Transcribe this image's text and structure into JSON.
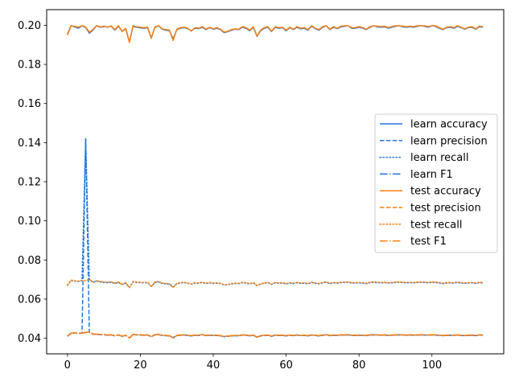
{
  "chart_data": {
    "type": "line",
    "title": "",
    "xlabel": "",
    "ylabel": "",
    "xlim": [
      -5.7,
      119.7
    ],
    "ylim": [
      0.032,
      0.208
    ],
    "xticks": [
      0,
      20,
      40,
      60,
      80,
      100
    ],
    "yticks": [
      0.04,
      0.06,
      0.08,
      0.1,
      0.12,
      0.14,
      0.16,
      0.18,
      0.2
    ],
    "ytick_labels": [
      "0.04",
      "0.06",
      "0.08",
      "0.10",
      "0.12",
      "0.14",
      "0.16",
      "0.18",
      "0.20"
    ],
    "grid": false,
    "legend_position": "center-right",
    "x_range": [
      0,
      114
    ],
    "series": [
      {
        "name": "learn accuracy",
        "color": "#1f77e0",
        "dash": "solid",
        "values": [
          0.1955,
          0.1998,
          0.1992,
          0.1985,
          0.1997,
          0.199,
          0.196,
          0.1975,
          0.1998,
          0.199,
          0.1993,
          0.1991,
          0.1995,
          0.1975,
          0.1995,
          0.197,
          0.1982,
          0.1915,
          0.1995,
          0.199,
          0.1987,
          0.1985,
          0.1988,
          0.1935,
          0.199,
          0.1997,
          0.198,
          0.1975,
          0.1972,
          0.193,
          0.1978,
          0.1985,
          0.1988,
          0.1983,
          0.1972,
          0.1985,
          0.1983,
          0.199,
          0.1978,
          0.1988,
          0.198,
          0.1985,
          0.1978,
          0.1962,
          0.1968,
          0.1975,
          0.198,
          0.1978,
          0.199,
          0.1985,
          0.1972,
          0.199,
          0.1943,
          0.1972,
          0.1985,
          0.199,
          0.1968,
          0.199,
          0.1985,
          0.1988,
          0.1972,
          0.1988,
          0.1978,
          0.199,
          0.1982,
          0.1985,
          0.1975,
          0.1995,
          0.1983,
          0.1975,
          0.199,
          0.1998,
          0.1978,
          0.199,
          0.1983,
          0.1992,
          0.1995,
          0.1998,
          0.1985,
          0.1985,
          0.199,
          0.1985,
          0.1978,
          0.199,
          0.1998,
          0.1992,
          0.199,
          0.1992,
          0.1985,
          0.199,
          0.1995,
          0.1998,
          0.1992,
          0.199,
          0.1993,
          0.199,
          0.1995,
          0.1998,
          0.1995,
          0.199,
          0.1998,
          0.1995,
          0.1985,
          0.1978,
          0.1988,
          0.199,
          0.1985,
          0.1995,
          0.1988,
          0.198,
          0.1988,
          0.199,
          0.198,
          0.1992,
          0.199
        ]
      },
      {
        "name": "learn precision",
        "color": "#1f77e0",
        "dash": "dashed",
        "values": [
          0.041,
          0.0425,
          0.0427,
          0.0424,
          0.0426,
          0.142,
          0.043,
          0.042,
          0.042,
          0.0418,
          0.0418,
          0.0415,
          0.0417,
          0.0412,
          0.0416,
          0.041,
          0.0414,
          0.0402,
          0.0418,
          0.0417,
          0.0416,
          0.0415,
          0.0416,
          0.0408,
          0.0417,
          0.0418,
          0.0414,
          0.0413,
          0.0412,
          0.0403,
          0.0413,
          0.0415,
          0.0416,
          0.0414,
          0.0412,
          0.0415,
          0.0414,
          0.0418,
          0.0413,
          0.0415,
          0.0414,
          0.0414,
          0.0412,
          0.0408,
          0.041,
          0.0412,
          0.0413,
          0.0412,
          0.0416,
          0.0415,
          0.0412,
          0.0415,
          0.0405,
          0.0412,
          0.0414,
          0.0415,
          0.041,
          0.0415,
          0.0414,
          0.0414,
          0.0412,
          0.0415,
          0.0413,
          0.0416,
          0.0413,
          0.0414,
          0.0412,
          0.0416,
          0.0414,
          0.0412,
          0.0415,
          0.0417,
          0.0413,
          0.0415,
          0.0414,
          0.0416,
          0.0416,
          0.0417,
          0.0414,
          0.0414,
          0.0415,
          0.0414,
          0.0413,
          0.0416,
          0.0417,
          0.0416,
          0.0415,
          0.0416,
          0.0414,
          0.0415,
          0.0416,
          0.0417,
          0.0416,
          0.0415,
          0.0416,
          0.0415,
          0.0416,
          0.0417,
          0.0416,
          0.0415,
          0.0417,
          0.0416,
          0.0414,
          0.0413,
          0.0414,
          0.0415,
          0.0414,
          0.0416,
          0.0414,
          0.0413,
          0.0414,
          0.0415,
          0.0413,
          0.0416,
          0.0415
        ]
      },
      {
        "name": "learn recall",
        "color": "#1f77e0",
        "dash": "dotted",
        "values": [
          0.067,
          0.0695,
          0.0692,
          0.069,
          0.0694,
          0.142,
          0.07,
          0.0685,
          0.0692,
          0.0688,
          0.0685,
          0.0684,
          0.0686,
          0.068,
          0.0685,
          0.0675,
          0.0682,
          0.066,
          0.0688,
          0.0685,
          0.0684,
          0.0683,
          0.0684,
          0.0665,
          0.0685,
          0.0688,
          0.068,
          0.0678,
          0.0676,
          0.0662,
          0.0678,
          0.0682,
          0.0684,
          0.0681,
          0.0677,
          0.0682,
          0.0681,
          0.0685,
          0.0679,
          0.0683,
          0.068,
          0.0681,
          0.0679,
          0.0672,
          0.0674,
          0.0677,
          0.068,
          0.0679,
          0.0684,
          0.0682,
          0.0677,
          0.0683,
          0.0668,
          0.0677,
          0.0681,
          0.0683,
          0.0675,
          0.0683,
          0.0681,
          0.0682,
          0.0677,
          0.0682,
          0.0679,
          0.0684,
          0.068,
          0.0681,
          0.0678,
          0.0685,
          0.0681,
          0.0678,
          0.0683,
          0.0686,
          0.0679,
          0.0683,
          0.0681,
          0.0684,
          0.0685,
          0.0686,
          0.0682,
          0.0682,
          0.0683,
          0.0682,
          0.0679,
          0.0684,
          0.0686,
          0.0684,
          0.0683,
          0.0684,
          0.0682,
          0.0683,
          0.0685,
          0.0686,
          0.0684,
          0.0683,
          0.0684,
          0.0683,
          0.0685,
          0.0686,
          0.0685,
          0.0683,
          0.0686,
          0.0685,
          0.0682,
          0.0679,
          0.0682,
          0.0683,
          0.0682,
          0.0685,
          0.0682,
          0.068,
          0.0682,
          0.0683,
          0.068,
          0.0684,
          0.0683
        ]
      },
      {
        "name": "learn F1",
        "color": "#1f77e0",
        "dash": "dashdot",
        "values": [
          0.041,
          0.0425,
          0.0427,
          0.0424,
          0.0426,
          0.043,
          0.0432,
          0.042,
          0.042,
          0.0418,
          0.0418,
          0.0415,
          0.0417,
          0.0412,
          0.0416,
          0.041,
          0.0414,
          0.0402,
          0.0418,
          0.0417,
          0.0416,
          0.0415,
          0.0416,
          0.0408,
          0.0417,
          0.0418,
          0.0414,
          0.0413,
          0.0412,
          0.0403,
          0.0413,
          0.0415,
          0.0416,
          0.0414,
          0.0412,
          0.0415,
          0.0414,
          0.0418,
          0.0413,
          0.0415,
          0.0414,
          0.0414,
          0.0412,
          0.0408,
          0.041,
          0.0412,
          0.0413,
          0.0412,
          0.0416,
          0.0415,
          0.0412,
          0.0415,
          0.0405,
          0.0412,
          0.0414,
          0.0415,
          0.041,
          0.0415,
          0.0414,
          0.0414,
          0.0412,
          0.0415,
          0.0413,
          0.0416,
          0.0413,
          0.0414,
          0.0412,
          0.0416,
          0.0414,
          0.0412,
          0.0415,
          0.0417,
          0.0413,
          0.0415,
          0.0414,
          0.0416,
          0.0416,
          0.0417,
          0.0414,
          0.0414,
          0.0415,
          0.0414,
          0.0413,
          0.0416,
          0.0417,
          0.0416,
          0.0415,
          0.0416,
          0.0414,
          0.0415,
          0.0416,
          0.0417,
          0.0416,
          0.0415,
          0.0416,
          0.0415,
          0.0416,
          0.0417,
          0.0416,
          0.0415,
          0.0417,
          0.0416,
          0.0414,
          0.0413,
          0.0414,
          0.0415,
          0.0414,
          0.0416,
          0.0414,
          0.0413,
          0.0414,
          0.0415,
          0.0413,
          0.0416,
          0.0415
        ]
      },
      {
        "name": "test accuracy",
        "color": "#ff7f0e",
        "dash": "solid",
        "values": [
          0.195,
          0.1998,
          0.1995,
          0.199,
          0.1998,
          0.1992,
          0.1965,
          0.1978,
          0.1998,
          0.1992,
          0.1995,
          0.199,
          0.1997,
          0.1978,
          0.1998,
          0.1968,
          0.1985,
          0.1912,
          0.1998,
          0.1992,
          0.199,
          0.1988,
          0.199,
          0.1933,
          0.1992,
          0.1998,
          0.1982,
          0.1978,
          0.1975,
          0.1922,
          0.198,
          0.1988,
          0.199,
          0.1985,
          0.197,
          0.1988,
          0.1985,
          0.1993,
          0.198,
          0.199,
          0.1982,
          0.1988,
          0.198,
          0.1965,
          0.197,
          0.1978,
          0.1982,
          0.198,
          0.1993,
          0.1988,
          0.1975,
          0.1993,
          0.1945,
          0.1975,
          0.1988,
          0.1993,
          0.197,
          0.1993,
          0.1988,
          0.199,
          0.1975,
          0.199,
          0.198,
          0.1993,
          0.1985,
          0.1988,
          0.1978,
          0.1998,
          0.1985,
          0.1978,
          0.1993,
          0.1998,
          0.198,
          0.1993,
          0.1985,
          0.1995,
          0.1998,
          0.1998,
          0.1988,
          0.1988,
          0.1993,
          0.1988,
          0.198,
          0.1993,
          0.1998,
          0.1995,
          0.1993,
          0.1995,
          0.1988,
          0.1993,
          0.1998,
          0.1998,
          0.1995,
          0.1993,
          0.1995,
          0.1993,
          0.1998,
          0.1998,
          0.1998,
          0.1993,
          0.1998,
          0.1998,
          0.1988,
          0.198,
          0.199,
          0.1993,
          0.1988,
          0.1998,
          0.199,
          0.1982,
          0.199,
          0.1993,
          0.1982,
          0.1995,
          0.1993
        ]
      },
      {
        "name": "test precision",
        "color": "#ff7f0e",
        "dash": "dashed",
        "values": [
          0.0412,
          0.0426,
          0.0428,
          0.0425,
          0.0427,
          0.0428,
          0.0433,
          0.0421,
          0.0421,
          0.0419,
          0.0419,
          0.0416,
          0.0418,
          0.0413,
          0.0417,
          0.041,
          0.0415,
          0.0401,
          0.0419,
          0.0418,
          0.0417,
          0.0416,
          0.0417,
          0.0408,
          0.0418,
          0.0419,
          0.0415,
          0.0414,
          0.0413,
          0.0401,
          0.0414,
          0.0416,
          0.0417,
          0.0415,
          0.0413,
          0.0416,
          0.0415,
          0.0419,
          0.0414,
          0.0416,
          0.0415,
          0.0415,
          0.0413,
          0.0409,
          0.0411,
          0.0413,
          0.0414,
          0.0413,
          0.0417,
          0.0416,
          0.0413,
          0.0416,
          0.0406,
          0.0413,
          0.0415,
          0.0416,
          0.0411,
          0.0416,
          0.0415,
          0.0415,
          0.0413,
          0.0416,
          0.0414,
          0.0417,
          0.0414,
          0.0415,
          0.0413,
          0.0417,
          0.0415,
          0.0413,
          0.0416,
          0.0418,
          0.0414,
          0.0416,
          0.0415,
          0.0417,
          0.0417,
          0.0418,
          0.0415,
          0.0415,
          0.0416,
          0.0415,
          0.0414,
          0.0417,
          0.0418,
          0.0417,
          0.0416,
          0.0417,
          0.0415,
          0.0416,
          0.0417,
          0.0418,
          0.0417,
          0.0416,
          0.0417,
          0.0416,
          0.0417,
          0.0418,
          0.0417,
          0.0416,
          0.0418,
          0.0417,
          0.0415,
          0.0414,
          0.0415,
          0.0416,
          0.0415,
          0.0417,
          0.0415,
          0.0414,
          0.0415,
          0.0416,
          0.0414,
          0.0417,
          0.0416
        ]
      },
      {
        "name": "test recall",
        "color": "#ff7f0e",
        "dash": "dotted",
        "values": [
          0.0672,
          0.0697,
          0.0694,
          0.0692,
          0.0696,
          0.0693,
          0.0702,
          0.0687,
          0.0694,
          0.069,
          0.0687,
          0.0686,
          0.0688,
          0.0682,
          0.0687,
          0.0674,
          0.0684,
          0.0658,
          0.069,
          0.0687,
          0.0686,
          0.0685,
          0.0686,
          0.0663,
          0.0687,
          0.069,
          0.0682,
          0.068,
          0.0678,
          0.0658,
          0.068,
          0.0684,
          0.0686,
          0.0683,
          0.0676,
          0.0684,
          0.0683,
          0.0687,
          0.0681,
          0.0685,
          0.0682,
          0.0683,
          0.0681,
          0.0673,
          0.0675,
          0.0679,
          0.0682,
          0.0681,
          0.0686,
          0.0684,
          0.0679,
          0.0685,
          0.0669,
          0.0679,
          0.0683,
          0.0685,
          0.0676,
          0.0685,
          0.0683,
          0.0684,
          0.0679,
          0.0684,
          0.0681,
          0.0686,
          0.0682,
          0.0683,
          0.068,
          0.0687,
          0.0683,
          0.068,
          0.0685,
          0.0688,
          0.0681,
          0.0685,
          0.0683,
          0.0686,
          0.0687,
          0.0688,
          0.0684,
          0.0684,
          0.0685,
          0.0684,
          0.0681,
          0.0686,
          0.0688,
          0.0686,
          0.0685,
          0.0686,
          0.0684,
          0.0685,
          0.0687,
          0.0688,
          0.0686,
          0.0685,
          0.0686,
          0.0685,
          0.0687,
          0.0688,
          0.0687,
          0.0685,
          0.0688,
          0.0687,
          0.0684,
          0.0681,
          0.0684,
          0.0685,
          0.0684,
          0.0687,
          0.0684,
          0.0682,
          0.0684,
          0.0685,
          0.0682,
          0.0686,
          0.0685
        ]
      },
      {
        "name": "test F1",
        "color": "#ff7f0e",
        "dash": "dashdot",
        "values": [
          0.0412,
          0.0426,
          0.0428,
          0.0425,
          0.0427,
          0.0428,
          0.0433,
          0.0421,
          0.0421,
          0.0419,
          0.0419,
          0.0416,
          0.0418,
          0.0413,
          0.0417,
          0.041,
          0.0415,
          0.0401,
          0.0419,
          0.0418,
          0.0417,
          0.0416,
          0.0417,
          0.0408,
          0.0418,
          0.0419,
          0.0415,
          0.0414,
          0.0413,
          0.0401,
          0.0414,
          0.0416,
          0.0417,
          0.0415,
          0.0413,
          0.0416,
          0.0415,
          0.0419,
          0.0414,
          0.0416,
          0.0415,
          0.0415,
          0.0413,
          0.0409,
          0.0411,
          0.0413,
          0.0414,
          0.0413,
          0.0417,
          0.0416,
          0.0413,
          0.0416,
          0.0406,
          0.0413,
          0.0415,
          0.0416,
          0.0411,
          0.0416,
          0.0415,
          0.0415,
          0.0413,
          0.0416,
          0.0414,
          0.0417,
          0.0414,
          0.0415,
          0.0413,
          0.0417,
          0.0415,
          0.0413,
          0.0416,
          0.0418,
          0.0414,
          0.0416,
          0.0415,
          0.0417,
          0.0417,
          0.0418,
          0.0415,
          0.0415,
          0.0416,
          0.0415,
          0.0414,
          0.0417,
          0.0418,
          0.0417,
          0.0416,
          0.0417,
          0.0415,
          0.0416,
          0.0417,
          0.0418,
          0.0417,
          0.0416,
          0.0417,
          0.0416,
          0.0417,
          0.0418,
          0.0417,
          0.0416,
          0.0418,
          0.0417,
          0.0415,
          0.0414,
          0.0415,
          0.0416,
          0.0415,
          0.0417,
          0.0415,
          0.0414,
          0.0415,
          0.0416,
          0.0414,
          0.0417,
          0.0416
        ]
      }
    ]
  }
}
